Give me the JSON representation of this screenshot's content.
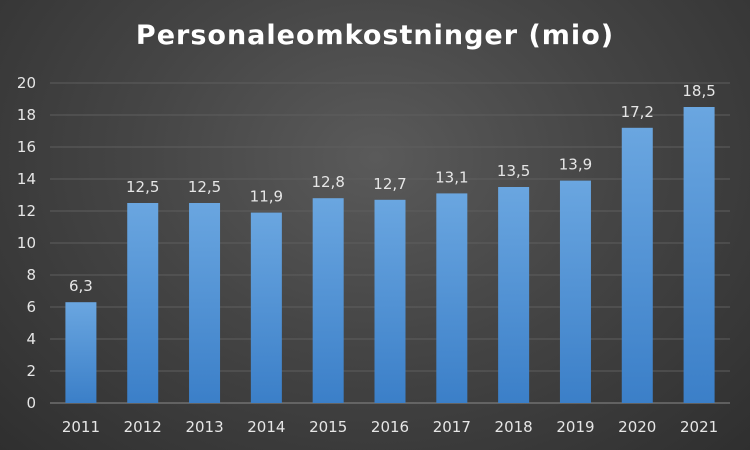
{
  "chart_data": {
    "type": "bar",
    "title": "Personaleomkostninger (mio)",
    "categories": [
      "2011",
      "2012",
      "2013",
      "2014",
      "2015",
      "2016",
      "2017",
      "2018",
      "2019",
      "2020",
      "2021"
    ],
    "values": [
      6.3,
      12.5,
      12.5,
      11.9,
      12.8,
      12.7,
      13.1,
      13.5,
      13.9,
      17.2,
      18.5
    ],
    "data_labels": [
      "6,3",
      "12,5",
      "12,5",
      "11,9",
      "12,8",
      "12,7",
      "13,1",
      "13,5",
      "13,9",
      "17,2",
      "18,5"
    ],
    "y_ticks": [
      "0",
      "2",
      "4",
      "6",
      "8",
      "10",
      "12",
      "14",
      "16",
      "18",
      "20"
    ],
    "ylim": [
      0,
      20
    ],
    "xlabel": "",
    "ylabel": "",
    "grid": true,
    "legend": "none",
    "colors": {
      "bar_top": "#6aa6e0",
      "bar_bottom": "#3b7fc8",
      "grid": "#5e5e5e",
      "text": "#e6e6e6",
      "title": "#ffffff"
    }
  }
}
